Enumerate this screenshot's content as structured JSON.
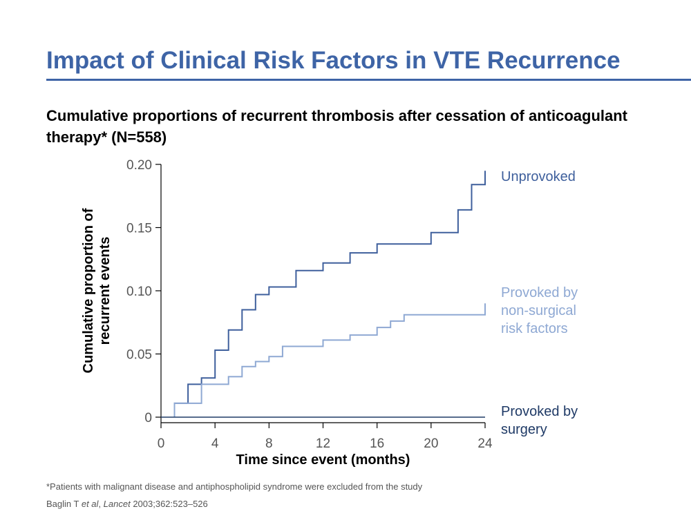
{
  "slide": {
    "title": "Impact of Clinical Risk Factors in VTE Recurrence",
    "subtitle": "Cumulative proportions of recurrent thrombosis after cessation of anticoagulant therapy* (N=558)"
  },
  "footer": {
    "footnote": "*Patients with malignant disease and antiphospholipid syndrome were excluded from the study",
    "citation": {
      "author": "Baglin T ",
      "et_al": "et al",
      "sep": ", ",
      "journal": "Lancet",
      "details": " 2003;362:523–526"
    }
  },
  "chart_data": {
    "type": "line",
    "step": true,
    "xlabel": "Time since event (months)",
    "ylabel_lines": [
      "Cumulative proportion of",
      "recurrent events"
    ],
    "xlim": [
      0,
      24
    ],
    "ylim": [
      0,
      0.2
    ],
    "xticks": [
      0,
      4,
      8,
      12,
      16,
      20,
      24
    ],
    "xtick_labels": [
      "0",
      "4",
      "8",
      "12",
      "16",
      "20",
      "24"
    ],
    "yticks": [
      0,
      0.05,
      0.1,
      0.15,
      0.2
    ],
    "ytick_labels": [
      "0",
      "0.05",
      "0.10",
      "0.15",
      "0.20"
    ],
    "grid": false,
    "legend": "direct labels at right",
    "series": [
      {
        "name_lines": [
          "Unprovoked"
        ],
        "color": "#3e5f9c",
        "points": [
          [
            1,
            0
          ],
          [
            1,
            0.011
          ],
          [
            2,
            0.011
          ],
          [
            2,
            0.026
          ],
          [
            3,
            0.026
          ],
          [
            3,
            0.031
          ],
          [
            4,
            0.031
          ],
          [
            4,
            0.053
          ],
          [
            5,
            0.053
          ],
          [
            5,
            0.069
          ],
          [
            6,
            0.069
          ],
          [
            6,
            0.085
          ],
          [
            7,
            0.085
          ],
          [
            7,
            0.097
          ],
          [
            8,
            0.097
          ],
          [
            8,
            0.103
          ],
          [
            10,
            0.103
          ],
          [
            10,
            0.116
          ],
          [
            12,
            0.116
          ],
          [
            12,
            0.122
          ],
          [
            14,
            0.122
          ],
          [
            14,
            0.13
          ],
          [
            16,
            0.13
          ],
          [
            16,
            0.137
          ],
          [
            20,
            0.137
          ],
          [
            20,
            0.146
          ],
          [
            22,
            0.146
          ],
          [
            22,
            0.164
          ],
          [
            23,
            0.164
          ],
          [
            23,
            0.184
          ],
          [
            24,
            0.184
          ],
          [
            24,
            0.195
          ]
        ]
      },
      {
        "name_lines": [
          "Provoked by",
          "non-surgical",
          "risk factors"
        ],
        "color": "#8ea8d3",
        "points": [
          [
            1,
            0
          ],
          [
            1,
            0.011
          ],
          [
            3,
            0.011
          ],
          [
            3,
            0.026
          ],
          [
            5,
            0.026
          ],
          [
            5,
            0.032
          ],
          [
            6,
            0.032
          ],
          [
            6,
            0.04
          ],
          [
            7,
            0.04
          ],
          [
            7,
            0.044
          ],
          [
            8,
            0.044
          ],
          [
            8,
            0.048
          ],
          [
            9,
            0.048
          ],
          [
            9,
            0.056
          ],
          [
            12,
            0.056
          ],
          [
            12,
            0.061
          ],
          [
            14,
            0.061
          ],
          [
            14,
            0.065
          ],
          [
            16,
            0.065
          ],
          [
            16,
            0.071
          ],
          [
            17,
            0.071
          ],
          [
            17,
            0.076
          ],
          [
            18,
            0.076
          ],
          [
            18,
            0.081
          ],
          [
            24,
            0.081
          ],
          [
            24,
            0.09
          ]
        ]
      },
      {
        "name_lines": [
          "Provoked by",
          "surgery"
        ],
        "color": "#1f3a66",
        "points": [
          [
            0,
            0
          ],
          [
            24,
            0
          ]
        ]
      }
    ]
  }
}
